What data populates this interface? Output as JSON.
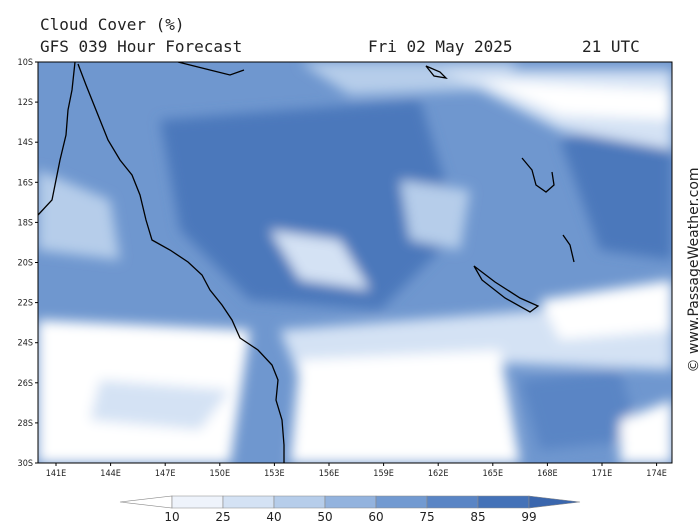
{
  "header": {
    "title": "Cloud Cover (%)",
    "subtitle": "GFS 039 Hour Forecast",
    "date": "Fri 02 May 2025",
    "time": "21 UTC"
  },
  "map": {
    "lat_labels": [
      "10S",
      "12S",
      "14S",
      "16S",
      "18S",
      "20S",
      "22S",
      "24S",
      "26S",
      "28S",
      "30S"
    ],
    "lon_labels": [
      "141E",
      "144E",
      "147E",
      "150E",
      "153E",
      "156E",
      "159E",
      "162E",
      "165E",
      "168E",
      "171E",
      "174E"
    ]
  },
  "colorbar": {
    "ticks": [
      10,
      25,
      40,
      50,
      60,
      75,
      85,
      99
    ],
    "colors": [
      "#ffffff",
      "#eef3fb",
      "#d4e2f4",
      "#b6cdea",
      "#93b3de",
      "#729ad1",
      "#5a85c5",
      "#4472b8",
      "#3a66ad"
    ]
  },
  "credit": "© www.PassageWeather.com"
}
